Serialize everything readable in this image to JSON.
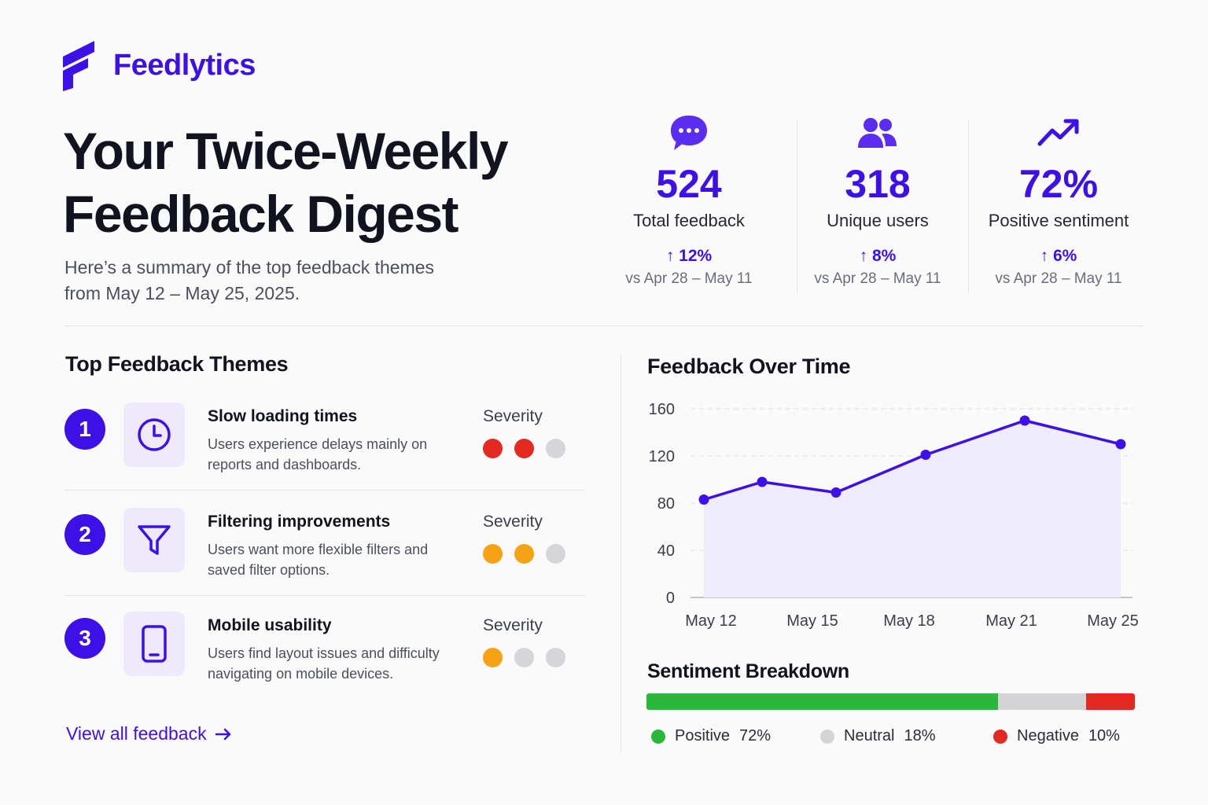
{
  "brand": {
    "name": "Feedlytics"
  },
  "hero": {
    "title_line1": "Your Twice-Weekly",
    "title_line2": "Feedback Digest",
    "subtitle_line1": "Here’s a summary of the top feedback themes",
    "subtitle_line2": "from May 12 – May 25, 2025."
  },
  "stats": [
    {
      "icon": "chat-bubble-icon",
      "value": "524",
      "label": "Total feedback",
      "delta": "12%",
      "compare": "vs Apr 28 – May 11"
    },
    {
      "icon": "users-icon",
      "value": "318",
      "label": "Unique users",
      "delta": "8%",
      "compare": "vs Apr 28 – May 11"
    },
    {
      "icon": "trend-up-icon",
      "value": "72%",
      "label": "Positive sentiment",
      "delta": "6%",
      "compare": "vs Apr 28 – May 11"
    }
  ],
  "themes": {
    "title": "Top Feedback Themes",
    "severity_label": "Severity",
    "items": [
      {
        "rank": "1",
        "icon": "clock-icon",
        "title": "Slow loading times",
        "desc": "Users experience delays mainly on reports and dashboards.",
        "severity": 2,
        "color": "#e22a22"
      },
      {
        "rank": "2",
        "icon": "filter-icon",
        "title": "Filtering improvements",
        "desc": "Users want more flexible filters and saved filter options.",
        "severity": 2,
        "color": "#f5a215"
      },
      {
        "rank": "3",
        "icon": "mobile-phone-icon",
        "title": "Mobile usability",
        "desc": "Users find layout issues and difficulty navigating on mobile devices.",
        "severity": 1,
        "color": "#f5a215"
      }
    ],
    "inactive_color": "#d6d6da",
    "view_all": "View all feedback"
  },
  "over_time": {
    "title": "Feedback Over Time",
    "chart_data": {
      "type": "area",
      "x": [
        "May 12",
        "May 14",
        "May 16",
        "May 18",
        "May 21",
        "May 25"
      ],
      "x_ticks": [
        "May 12",
        "May 15",
        "May 18",
        "May 21",
        "May 25"
      ],
      "y_ticks": [
        0,
        40,
        80,
        120,
        160
      ],
      "values": [
        83,
        98,
        89,
        121,
        150,
        130
      ],
      "ylim": [
        0,
        160
      ],
      "grid": true,
      "line_color": "#3d10e8",
      "fill_color": "#efecfd"
    }
  },
  "sentiment": {
    "title": "Sentiment Breakdown",
    "segments": [
      {
        "name": "Positive",
        "value": "72%",
        "fraction": 0.72,
        "color": "#2bb73c"
      },
      {
        "name": "Neutral",
        "value": "18%",
        "fraction": 0.18,
        "color": "#d4d4d6"
      },
      {
        "name": "Negative",
        "value": "10%",
        "fraction": 0.1,
        "color": "#e22a22"
      }
    ]
  },
  "colors": {
    "accent": "#3d10e8"
  }
}
